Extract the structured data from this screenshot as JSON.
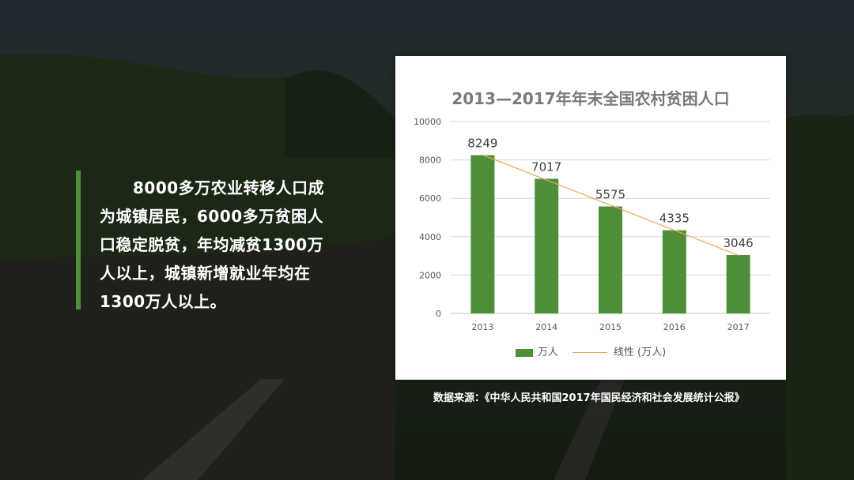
{
  "colors": {
    "bar": "#4f8f3a",
    "trend": "#f0a35a",
    "grid": "#d9d9d9",
    "axis_text": "#595959"
  },
  "quote": {
    "text": "8000多万农业转移人口成为城镇居民，6000多万贫困人口稳定脱贫，年均减贫1300万人以上，城镇新增就业年均在1300万人以上。"
  },
  "legend": {
    "bar_label": "万人",
    "trend_label": "线性 (万人)"
  },
  "source": {
    "text": "数据来源：《中华人民共和国2017年国民经济和社会发展统计公报》"
  },
  "chart_data": {
    "type": "bar",
    "title": "2013—2017年年末全国农村贫困人口",
    "categories": [
      "2013",
      "2014",
      "2015",
      "2016",
      "2017"
    ],
    "series": [
      {
        "name": "万人",
        "values": [
          8249,
          7017,
          5575,
          4335,
          3046
        ]
      }
    ],
    "trendline": {
      "name": "线性 (万人)",
      "kind": "linear"
    },
    "ylim": [
      0,
      10000
    ],
    "yticks": [
      0,
      2000,
      4000,
      6000,
      8000,
      10000
    ],
    "grid": true,
    "legend_position": "bottom",
    "data_labels": true
  }
}
